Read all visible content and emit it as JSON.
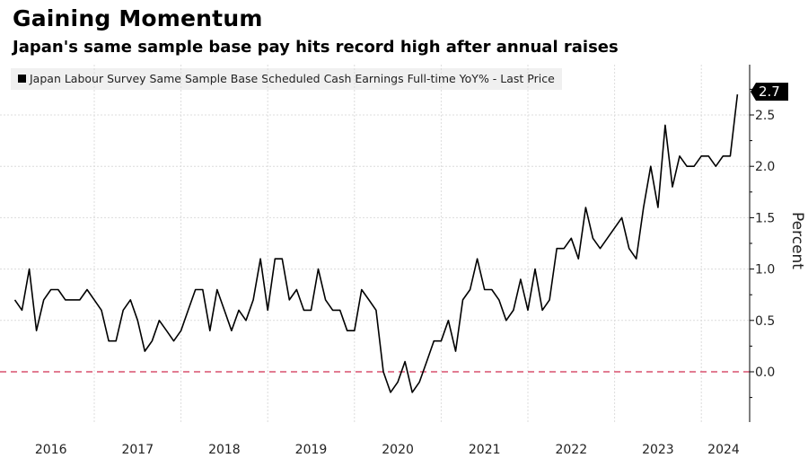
{
  "title": "Gaining Momentum",
  "subtitle": "Japan's same sample base pay hits record high after annual raises",
  "chart_data": {
    "type": "line",
    "title": "Gaining Momentum",
    "subtitle": "Japan's same sample base pay hits record high after annual raises",
    "legend": "Japan Labour Survey Same Sample Base Scheduled Cash Earnings Full-time YoY% - Last Price",
    "legend_placement": "top-left",
    "xlabel": "",
    "ylabel": "Percent",
    "start": "2016-02",
    "frequency": "monthly",
    "x_ticks": [
      "2016",
      "2017",
      "2018",
      "2019",
      "2020",
      "2021",
      "2022",
      "2023",
      "2024"
    ],
    "y_ticks": [
      "0.0",
      "0.5",
      "1.0",
      "1.5",
      "2.0",
      "2.5"
    ],
    "ylim": [
      -0.25,
      2.9
    ],
    "grid": true,
    "reference_line": {
      "value": 0.0,
      "color": "#d9506e",
      "style": "dashed"
    },
    "last_price_label": "2.7",
    "series": [
      {
        "name": "Japan Labour Survey Same Sample Base Scheduled Cash Earnings Full-time YoY%",
        "color": "#000000",
        "values": [
          0.7,
          0.6,
          1.0,
          0.4,
          0.7,
          0.8,
          0.8,
          0.7,
          0.7,
          0.7,
          0.8,
          0.7,
          0.6,
          0.3,
          0.3,
          0.6,
          0.7,
          0.5,
          0.2,
          0.3,
          0.5,
          0.4,
          0.3,
          0.4,
          0.6,
          0.8,
          0.8,
          0.4,
          0.8,
          0.6,
          0.4,
          0.6,
          0.5,
          0.7,
          1.1,
          0.6,
          1.1,
          1.1,
          0.7,
          0.8,
          0.6,
          0.6,
          1.0,
          0.7,
          0.6,
          0.6,
          0.4,
          0.4,
          0.8,
          0.7,
          0.6,
          0.0,
          -0.2,
          -0.1,
          0.1,
          -0.2,
          -0.1,
          0.1,
          0.3,
          0.3,
          0.5,
          0.2,
          0.7,
          0.8,
          1.1,
          0.8,
          0.8,
          0.7,
          0.5,
          0.6,
          0.9,
          0.6,
          1.0,
          0.6,
          0.7,
          1.2,
          1.2,
          1.3,
          1.1,
          1.6,
          1.3,
          1.2,
          1.3,
          1.4,
          1.5,
          1.2,
          1.1,
          1.6,
          2.0,
          1.6,
          2.4,
          1.8,
          2.1,
          2.0,
          2.0,
          2.1,
          2.1,
          2.0,
          2.1,
          2.1,
          2.7
        ]
      }
    ]
  }
}
